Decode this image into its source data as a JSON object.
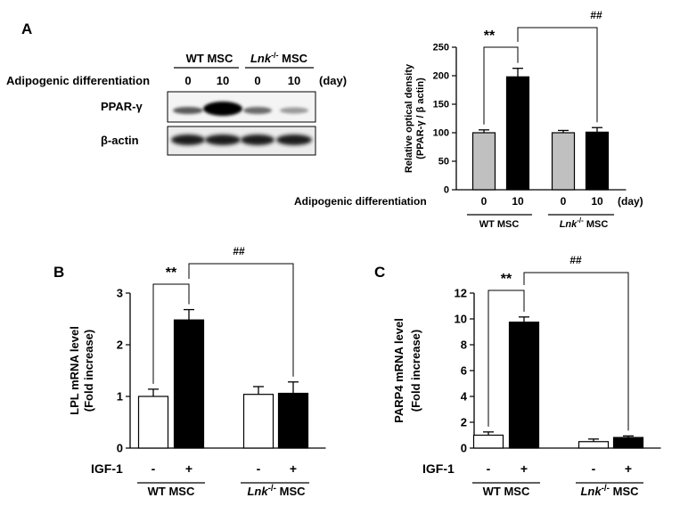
{
  "panels": {
    "A": "A",
    "B": "B",
    "C": "C"
  },
  "western_blot": {
    "group_wt": "WT MSC",
    "group_lnk": "Lnk",
    "group_lnk_sup": "-/-",
    "group_lnk_suffix": " MSC",
    "row_label": "Adipogenic differentiation",
    "days": [
      "0",
      "10",
      "0",
      "10"
    ],
    "unit": "(day)",
    "bands": [
      "PPAR-γ",
      "β-actin"
    ]
  },
  "chart_data": [
    {
      "id": "A",
      "type": "bar",
      "ylabel_line1": "Relative optical density",
      "ylabel_line2": "(PPAR-γ / β actin)",
      "ylim": [
        0,
        250
      ],
      "yticks": [
        "0",
        "50",
        "100",
        "150",
        "200",
        "250"
      ],
      "xrow_label": "Adipogenic differentiation",
      "xrow_unit": "(day)",
      "categories": [
        "0",
        "10",
        "0",
        "10"
      ],
      "groups": [
        "WT MSC",
        "Lnk-/- MSC"
      ],
      "values": [
        100,
        198,
        100,
        101
      ],
      "errors": [
        5,
        15,
        4,
        8
      ],
      "bar_colors": [
        "#c0c0c0",
        "#000000",
        "#c0c0c0",
        "#000000"
      ],
      "annotations": [
        "**",
        "##"
      ]
    },
    {
      "id": "B",
      "type": "bar",
      "ylabel_line1": "LPL mRNA level",
      "ylabel_line2": "(Fold increase)",
      "ylim": [
        0,
        3
      ],
      "yticks": [
        "0",
        "1",
        "2",
        "3"
      ],
      "xrow_label": "IGF-1",
      "categories": [
        "-",
        "+",
        "-",
        "+"
      ],
      "groups": [
        "WT MSC",
        "Lnk-/- MSC"
      ],
      "values": [
        1.0,
        2.48,
        1.04,
        1.06
      ],
      "errors": [
        0.14,
        0.2,
        0.15,
        0.22
      ],
      "bar_colors": [
        "#ffffff",
        "#000000",
        "#ffffff",
        "#000000"
      ],
      "annotations": [
        "**",
        "##"
      ]
    },
    {
      "id": "C",
      "type": "bar",
      "ylabel_line1": "PARP4 mRNA level",
      "ylabel_line2": "(Fold increase)",
      "ylim": [
        0,
        12
      ],
      "yticks": [
        "0",
        "2",
        "4",
        "6",
        "8",
        "10",
        "12"
      ],
      "xrow_label": "IGF-1",
      "categories": [
        "-",
        "+",
        "-",
        "+"
      ],
      "groups": [
        "WT MSC",
        "Lnk-/- MSC"
      ],
      "values": [
        1.0,
        9.75,
        0.5,
        0.82
      ],
      "errors": [
        0.25,
        0.4,
        0.2,
        0.12
      ],
      "bar_colors": [
        "#ffffff",
        "#000000",
        "#ffffff",
        "#000000"
      ],
      "annotations": [
        "**",
        "##"
      ]
    }
  ]
}
